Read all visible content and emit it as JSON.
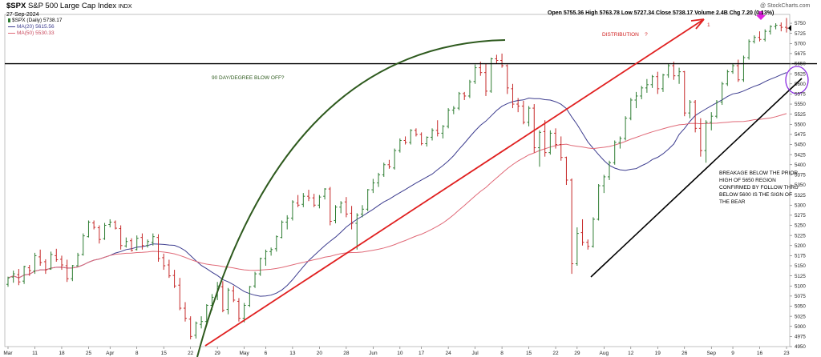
{
  "header": {
    "symbol": "$SPX",
    "name": "S&P 500 Large Cap Index",
    "exchange": "INDX",
    "date": "27-Sep-2024",
    "watermark": "@ StockCharts.com",
    "ohlc_line": "Open 5755.36 High 5763.78 Low 5727.34 Close 5738.17 Volume 2.4B Chg 7.20 (0.13%)"
  },
  "legend": {
    "price": "$SPX (Daily) 5738.17",
    "ma20": "MA(20) 5615.56",
    "ma50": "MA(50) 5530.33"
  },
  "annotations": {
    "distribution": "DISTRIBUTION",
    "question": "?",
    "note_1": "1",
    "blowoff": "90 DAY/DEGREE BLOW OFF?",
    "breakage": [
      "BREAKAGE BELOW THE PRIOR",
      "HIGH OF 5650 REGION",
      "CONFIRMED BY FOLLOW THRU",
      "BELOW 5600 IS THE SIGN OF",
      "THE BEAR"
    ]
  },
  "colors": {
    "up_bar": "#2e7d32",
    "down_bar": "#c62828",
    "ma20": "#3d3d8f",
    "ma50": "#e06a78",
    "trend_red": "#e02020",
    "trend_black": "#000000",
    "arc_green": "#2e5a1e",
    "circle": "#8a2be2",
    "marker": "#e020e0"
  },
  "chart_data": {
    "type": "ohlc",
    "title": "$SPX S&P 500 Large Cap Index INDX",
    "ylim": [
      4950,
      5760
    ],
    "y_ticks": [
      4950,
      4975,
      5000,
      5025,
      5050,
      5075,
      5100,
      5125,
      5150,
      5175,
      5200,
      5225,
      5250,
      5275,
      5300,
      5325,
      5350,
      5375,
      5400,
      5425,
      5450,
      5475,
      5500,
      5525,
      5550,
      5575,
      5600,
      5625,
      5650,
      5675,
      5700,
      5725,
      5750
    ],
    "x_ticks": [
      "Mar",
      "11",
      "18",
      "25",
      "Apr",
      "8",
      "15",
      "22",
      "29",
      "May",
      "6",
      "13",
      "20",
      "28",
      "Jun",
      "10",
      "17",
      "24",
      "Jul",
      "8",
      "15",
      "22",
      "29",
      "Aug",
      "12",
      "19",
      "26",
      "Sep",
      "9",
      "16",
      "23"
    ],
    "horizontal_line": 5650,
    "bars": [
      [
        5104,
        5123,
        5098,
        5120
      ],
      [
        5122,
        5138,
        5108,
        5130
      ],
      [
        5128,
        5142,
        5102,
        5110
      ],
      [
        5112,
        5150,
        5105,
        5148
      ],
      [
        5145,
        5152,
        5125,
        5138
      ],
      [
        5137,
        5182,
        5130,
        5175
      ],
      [
        5172,
        5190,
        5150,
        5158
      ],
      [
        5160,
        5166,
        5130,
        5140
      ],
      [
        5142,
        5185,
        5140,
        5178
      ],
      [
        5175,
        5192,
        5160,
        5165
      ],
      [
        5166,
        5175,
        5140,
        5152
      ],
      [
        5150,
        5165,
        5110,
        5118
      ],
      [
        5118,
        5152,
        5112,
        5150
      ],
      [
        5150,
        5182,
        5148,
        5176
      ],
      [
        5178,
        5230,
        5175,
        5224
      ],
      [
        5222,
        5262,
        5220,
        5258
      ],
      [
        5256,
        5262,
        5240,
        5245
      ],
      [
        5244,
        5250,
        5205,
        5215
      ],
      [
        5217,
        5256,
        5214,
        5250
      ],
      [
        5252,
        5265,
        5245,
        5258
      ],
      [
        5258,
        5262,
        5240,
        5243
      ],
      [
        5242,
        5250,
        5190,
        5200
      ],
      [
        5199,
        5220,
        5195,
        5210
      ],
      [
        5212,
        5218,
        5185,
        5188
      ],
      [
        5190,
        5225,
        5188,
        5218
      ],
      [
        5220,
        5230,
        5190,
        5200
      ],
      [
        5200,
        5215,
        5195,
        5210
      ],
      [
        5208,
        5230,
        5200,
        5222
      ],
      [
        5220,
        5228,
        5160,
        5168
      ],
      [
        5170,
        5180,
        5140,
        5150
      ],
      [
        5152,
        5165,
        5120,
        5125
      ],
      [
        5126,
        5140,
        5095,
        5100
      ],
      [
        5102,
        5120,
        5040,
        5045
      ],
      [
        5045,
        5060,
        5012,
        5020
      ],
      [
        5018,
        5025,
        4968,
        4975
      ],
      [
        4978,
        5012,
        4970,
        5008
      ],
      [
        5005,
        5025,
        4995,
        5012
      ],
      [
        5012,
        5055,
        5005,
        5052
      ],
      [
        5052,
        5080,
        5040,
        5072
      ],
      [
        5075,
        5110,
        5065,
        5100
      ],
      [
        5098,
        5112,
        5035,
        5040
      ],
      [
        5042,
        5095,
        5030,
        5090
      ],
      [
        5088,
        5100,
        5060,
        5065
      ],
      [
        5062,
        5070,
        5012,
        5020
      ],
      [
        5020,
        5058,
        5010,
        5052
      ],
      [
        5052,
        5100,
        5048,
        5098
      ],
      [
        5100,
        5135,
        5095,
        5130
      ],
      [
        5130,
        5170,
        5125,
        5168
      ],
      [
        5168,
        5190,
        5150,
        5185
      ],
      [
        5185,
        5195,
        5175,
        5190
      ],
      [
        5192,
        5225,
        5185,
        5222
      ],
      [
        5220,
        5262,
        5218,
        5258
      ],
      [
        5258,
        5275,
        5240,
        5268
      ],
      [
        5268,
        5312,
        5262,
        5308
      ],
      [
        5305,
        5325,
        5295,
        5300
      ],
      [
        5302,
        5330,
        5295,
        5322
      ],
      [
        5322,
        5338,
        5310,
        5318
      ],
      [
        5318,
        5328,
        5295,
        5300
      ],
      [
        5300,
        5325,
        5292,
        5320
      ],
      [
        5322,
        5342,
        5314,
        5340
      ],
      [
        5340,
        5345,
        5250,
        5260
      ],
      [
        5262,
        5300,
        5255,
        5295
      ],
      [
        5295,
        5310,
        5280,
        5305
      ],
      [
        5308,
        5320,
        5270,
        5278
      ],
      [
        5280,
        5298,
        5240,
        5255
      ],
      [
        5255,
        5280,
        5190,
        5275
      ],
      [
        5278,
        5300,
        5270,
        5290
      ],
      [
        5290,
        5340,
        5285,
        5338
      ],
      [
        5338,
        5365,
        5330,
        5355
      ],
      [
        5355,
        5380,
        5345,
        5375
      ],
      [
        5375,
        5405,
        5370,
        5400
      ],
      [
        5400,
        5412,
        5390,
        5395
      ],
      [
        5392,
        5440,
        5388,
        5435
      ],
      [
        5435,
        5465,
        5430,
        5460
      ],
      [
        5460,
        5470,
        5450,
        5455
      ],
      [
        5455,
        5488,
        5450,
        5485
      ],
      [
        5485,
        5490,
        5470,
        5475
      ],
      [
        5475,
        5480,
        5448,
        5452
      ],
      [
        5452,
        5470,
        5445,
        5468
      ],
      [
        5468,
        5490,
        5460,
        5485
      ],
      [
        5485,
        5510,
        5470,
        5478
      ],
      [
        5478,
        5498,
        5465,
        5495
      ],
      [
        5495,
        5540,
        5490,
        5535
      ],
      [
        5535,
        5545,
        5525,
        5540
      ],
      [
        5540,
        5580,
        5535,
        5576
      ],
      [
        5576,
        5580,
        5560,
        5570
      ],
      [
        5570,
        5610,
        5565,
        5605
      ],
      [
        5606,
        5648,
        5600,
        5640
      ],
      [
        5640,
        5655,
        5620,
        5628
      ],
      [
        5628,
        5650,
        5570,
        5582
      ],
      [
        5582,
        5665,
        5578,
        5662
      ],
      [
        5662,
        5672,
        5650,
        5658
      ],
      [
        5658,
        5675,
        5640,
        5645
      ],
      [
        5645,
        5648,
        5575,
        5590
      ],
      [
        5588,
        5600,
        5540,
        5550
      ],
      [
        5550,
        5565,
        5530,
        5545
      ],
      [
        5545,
        5558,
        5500,
        5505
      ],
      [
        5505,
        5545,
        5495,
        5540
      ],
      [
        5540,
        5550,
        5430,
        5442
      ],
      [
        5442,
        5485,
        5395,
        5480
      ],
      [
        5482,
        5510,
        5420,
        5430
      ],
      [
        5430,
        5485,
        5425,
        5478
      ],
      [
        5478,
        5490,
        5440,
        5450
      ],
      [
        5450,
        5470,
        5410,
        5418
      ],
      [
        5418,
        5420,
        5350,
        5362
      ],
      [
        5362,
        5366,
        5130,
        5155
      ],
      [
        5155,
        5245,
        5150,
        5230
      ],
      [
        5232,
        5265,
        5200,
        5208
      ],
      [
        5208,
        5215,
        5190,
        5198
      ],
      [
        5198,
        5270,
        5195,
        5265
      ],
      [
        5265,
        5352,
        5262,
        5348
      ],
      [
        5348,
        5375,
        5330,
        5370
      ],
      [
        5370,
        5410,
        5362,
        5405
      ],
      [
        5405,
        5460,
        5400,
        5455
      ],
      [
        5455,
        5470,
        5440,
        5465
      ],
      [
        5465,
        5520,
        5460,
        5515
      ],
      [
        5515,
        5565,
        5510,
        5560
      ],
      [
        5560,
        5580,
        5540,
        5570
      ],
      [
        5570,
        5595,
        5562,
        5590
      ],
      [
        5590,
        5612,
        5578,
        5598
      ],
      [
        5598,
        5622,
        5590,
        5618
      ],
      [
        5618,
        5630,
        5575,
        5588
      ],
      [
        5588,
        5625,
        5580,
        5622
      ],
      [
        5622,
        5650,
        5615,
        5645
      ],
      [
        5645,
        5655,
        5610,
        5620
      ],
      [
        5620,
        5640,
        5600,
        5630
      ],
      [
        5630,
        5632,
        5520,
        5528
      ],
      [
        5528,
        5560,
        5515,
        5555
      ],
      [
        5555,
        5560,
        5480,
        5490
      ],
      [
        5490,
        5515,
        5420,
        5435
      ],
      [
        5435,
        5510,
        5405,
        5505
      ],
      [
        5505,
        5530,
        5485,
        5520
      ],
      [
        5520,
        5560,
        5515,
        5555
      ],
      [
        5555,
        5605,
        5548,
        5600
      ],
      [
        5600,
        5635,
        5595,
        5630
      ],
      [
        5630,
        5650,
        5625,
        5645
      ],
      [
        5645,
        5660,
        5605,
        5610
      ],
      [
        5610,
        5670,
        5605,
        5665
      ],
      [
        5665,
        5710,
        5660,
        5705
      ],
      [
        5705,
        5720,
        5700,
        5715
      ],
      [
        5715,
        5730,
        5705,
        5710
      ],
      [
        5710,
        5735,
        5705,
        5730
      ],
      [
        5730,
        5745,
        5722,
        5742
      ],
      [
        5742,
        5750,
        5735,
        5745
      ],
      [
        5745,
        5752,
        5730,
        5740
      ],
      [
        5740,
        5763,
        5727,
        5738
      ]
    ]
  }
}
